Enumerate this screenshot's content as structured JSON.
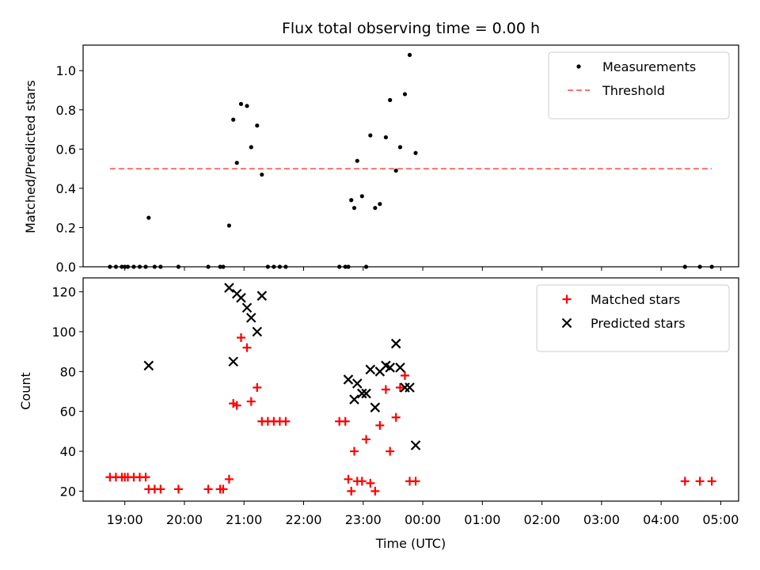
{
  "chart_data": {
    "type": "scatter",
    "title": "Flux total observing time = 0.00 h",
    "xlabel": "Time (UTC)",
    "x_tick_labels": [
      "19:00",
      "20:00",
      "21:00",
      "22:00",
      "23:00",
      "00:00",
      "01:00",
      "02:00",
      "03:00",
      "04:00",
      "05:00"
    ],
    "x_tick_hours": [
      19,
      20,
      21,
      22,
      23,
      24,
      25,
      26,
      27,
      28,
      29
    ],
    "xlim_hours": [
      18.3,
      29.3
    ],
    "panels": [
      {
        "ylabel": "Matched/Predicted stars",
        "ylim": [
          0,
          1.13
        ],
        "y_ticks": [
          0,
          0.2,
          0.4,
          0.6,
          0.8,
          1.0
        ],
        "y_tick_labels": [
          "0.0",
          "0.2",
          "0.4",
          "0.6",
          "0.8",
          "1.0"
        ],
        "legend": {
          "location": "top-right",
          "entries": [
            "Measurements",
            "Threshold"
          ]
        },
        "series": [
          {
            "name": "Measurements",
            "marker": "dot",
            "color": "#000000",
            "x_hours": [
              18.75,
              18.85,
              18.95,
              19.0,
              19.05,
              19.15,
              19.25,
              19.35,
              19.4,
              19.5,
              19.6,
              19.9,
              20.4,
              20.6,
              20.65,
              20.75,
              20.82,
              20.88,
              20.95,
              21.05,
              21.12,
              21.22,
              21.3,
              21.4,
              21.5,
              21.6,
              21.7,
              22.6,
              22.7,
              22.75,
              22.8,
              22.85,
              22.9,
              22.98,
              23.05,
              23.12,
              23.2,
              23.28,
              23.38,
              23.45,
              23.55,
              23.62,
              23.7,
              23.78,
              23.88,
              28.4,
              28.65,
              28.85
            ],
            "y": [
              0,
              0,
              0,
              0,
              0,
              0,
              0,
              0,
              0.25,
              0,
              0,
              0,
              0,
              0,
              0,
              0.21,
              0.75,
              0.53,
              0.83,
              0.82,
              0.61,
              0.72,
              0.47,
              0,
              0,
              0,
              0,
              0,
              0,
              0,
              0.34,
              0.3,
              0.54,
              0.36,
              0,
              0.67,
              0.3,
              0.32,
              0.66,
              0.85,
              0.49,
              0.61,
              0.88,
              1.08,
              0.58,
              0,
              0,
              0
            ]
          },
          {
            "name": "Threshold",
            "marker": "dashed-line",
            "color": "#ff7070",
            "x_hours": [
              18.75,
              28.85
            ],
            "y": [
              0.5,
              0.5
            ]
          }
        ]
      },
      {
        "ylabel": "Count",
        "ylim": [
          15,
          127
        ],
        "y_ticks": [
          20,
          40,
          60,
          80,
          100,
          120
        ],
        "y_tick_labels": [
          "20",
          "40",
          "60",
          "80",
          "100",
          "120"
        ],
        "legend": {
          "location": "top-right",
          "entries": [
            "Matched stars",
            "Predicted stars"
          ]
        },
        "series": [
          {
            "name": "Matched stars",
            "marker": "plus",
            "color": "#ff0000",
            "x_hours": [
              18.75,
              18.85,
              18.95,
              19.0,
              19.05,
              19.15,
              19.25,
              19.35,
              19.4,
              19.5,
              19.6,
              19.9,
              20.4,
              20.6,
              20.65,
              20.75,
              20.82,
              20.88,
              20.95,
              21.05,
              21.12,
              21.22,
              21.3,
              21.4,
              21.5,
              21.6,
              21.7,
              22.6,
              22.7,
              22.75,
              22.8,
              22.85,
              22.9,
              22.98,
              23.05,
              23.12,
              23.2,
              23.28,
              23.38,
              23.45,
              23.55,
              23.62,
              23.7,
              23.78,
              23.88,
              28.4,
              28.65,
              28.85
            ],
            "y": [
              27,
              27,
              27,
              27,
              27,
              27,
              27,
              27,
              21,
              21,
              21,
              21,
              21,
              21,
              21,
              26,
              64,
              63,
              97,
              92,
              65,
              72,
              55,
              55,
              55,
              55,
              55,
              55,
              55,
              26,
              20,
              40,
              25,
              25,
              46,
              24,
              20,
              53,
              71,
              40,
              57,
              72,
              78,
              25,
              25,
              25,
              25,
              25
            ]
          },
          {
            "name": "Predicted stars",
            "marker": "x",
            "color": "#000000",
            "x_hours": [
              19.4,
              20.75,
              20.82,
              20.88,
              20.95,
              21.05,
              21.12,
              21.22,
              21.3,
              22.75,
              22.85,
              22.9,
              22.98,
              23.05,
              23.12,
              23.2,
              23.28,
              23.38,
              23.45,
              23.55,
              23.62,
              23.7,
              23.78,
              23.88
            ],
            "y": [
              83,
              122,
              85,
              119,
              117,
              112,
              107,
              100,
              118,
              76,
              66,
              74,
              69,
              69,
              81,
              62,
              80,
              83,
              82,
              94,
              82,
              72,
              72,
              43
            ]
          }
        ]
      }
    ]
  }
}
